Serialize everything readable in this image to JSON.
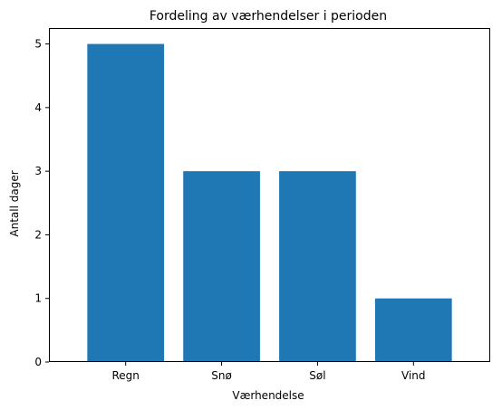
{
  "chart_data": {
    "type": "bar",
    "title": "Fordeling av værhendelser i perioden",
    "xlabel": "Værhendelse",
    "ylabel": "Antall dager",
    "categories": [
      "Regn",
      "Snø",
      "Søl",
      "Vind"
    ],
    "values": [
      5,
      3,
      3,
      1
    ],
    "ylim": [
      0,
      5.25
    ],
    "yticks": [
      0,
      1,
      2,
      3,
      4,
      5
    ],
    "bar_color": "#1f77b4",
    "grid": false,
    "legend": "none"
  }
}
